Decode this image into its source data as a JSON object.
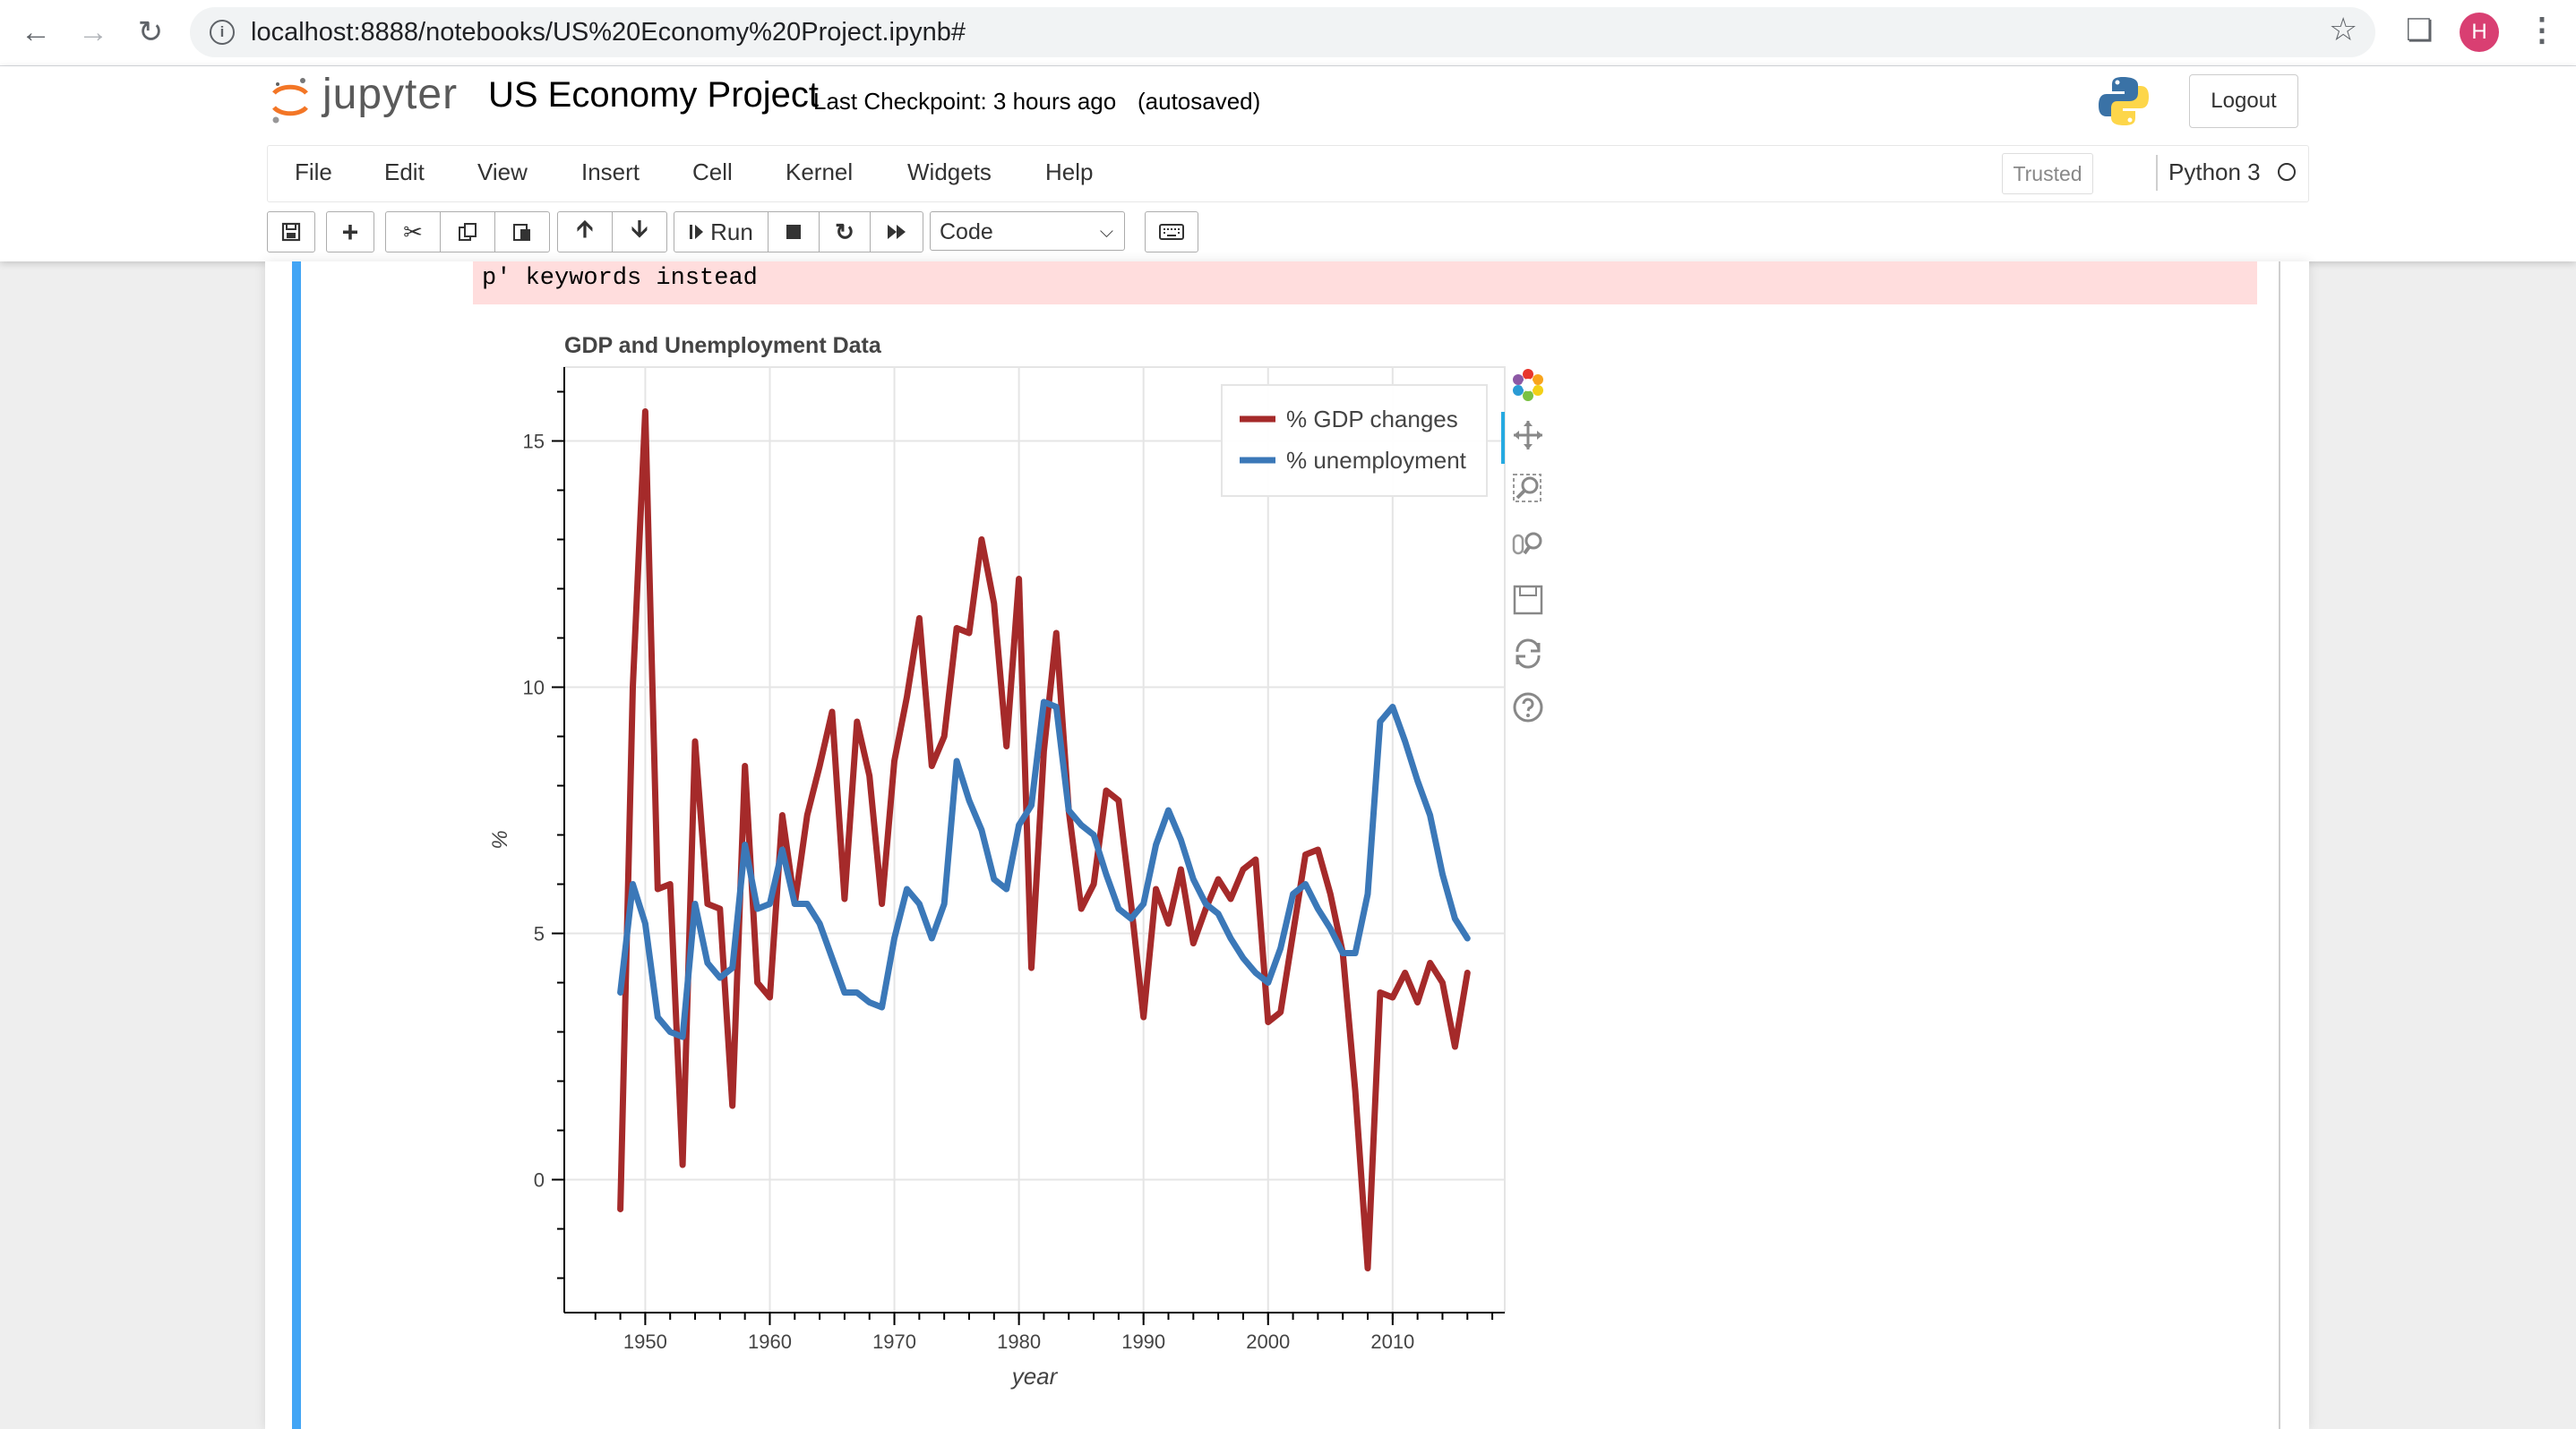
{
  "browser": {
    "url": "localhost:8888/notebooks/US%20Economy%20Project.ipynb#",
    "profile_initial": "H"
  },
  "header": {
    "logo_text": "jupyter",
    "notebook_name": "US Economy Project",
    "checkpoint": "Last Checkpoint: 3 hours ago",
    "autosave_status": "(autosaved)",
    "logout_label": "Logout"
  },
  "menu": {
    "items": [
      "File",
      "Edit",
      "View",
      "Insert",
      "Cell",
      "Kernel",
      "Widgets",
      "Help"
    ],
    "trusted_label": "Trusted",
    "kernel_name": "Python 3"
  },
  "toolbar": {
    "run_label": "Run",
    "cell_type": "Code"
  },
  "output": {
    "stderr_text": "p' keywords instead"
  },
  "colors": {
    "gdp": "#a52a2a",
    "unemployment": "#3b78b8",
    "cell_selected_bar": "#42a5f5",
    "stderr_bg": "#ffdddd"
  },
  "chart_data": {
    "type": "line",
    "title": "GDP and Unemployment Data",
    "xlabel": "year",
    "ylabel": "%",
    "xlim": [
      1943.5,
      2019
    ],
    "ylim": [
      -2.7,
      16.5
    ],
    "x_ticks": [
      1950,
      1960,
      1970,
      1980,
      1990,
      2000,
      2010
    ],
    "y_ticks": [
      0,
      5,
      10,
      15
    ],
    "grid": true,
    "legend_position": "top-right",
    "x": [
      1948,
      1949,
      1950,
      1951,
      1952,
      1953,
      1954,
      1955,
      1956,
      1957,
      1958,
      1959,
      1960,
      1961,
      1962,
      1963,
      1964,
      1965,
      1966,
      1967,
      1968,
      1969,
      1970,
      1971,
      1972,
      1973,
      1974,
      1975,
      1976,
      1977,
      1978,
      1979,
      1980,
      1981,
      1982,
      1983,
      1984,
      1985,
      1986,
      1987,
      1988,
      1989,
      1990,
      1991,
      1992,
      1993,
      1994,
      1995,
      1996,
      1997,
      1998,
      1999,
      2000,
      2001,
      2002,
      2003,
      2004,
      2005,
      2006,
      2007,
      2008,
      2009,
      2010,
      2011,
      2012,
      2013,
      2014,
      2015,
      2016
    ],
    "series": [
      {
        "name": "% GDP changes",
        "color": "#a52a2a",
        "values": [
          -0.6,
          10.0,
          15.6,
          5.9,
          6.0,
          0.3,
          8.9,
          5.6,
          5.5,
          1.5,
          8.4,
          4.0,
          3.7,
          7.4,
          5.6,
          7.4,
          8.4,
          9.5,
          5.7,
          9.3,
          8.2,
          5.6,
          8.5,
          9.8,
          11.4,
          8.4,
          9.0,
          11.2,
          11.1,
          13.0,
          11.7,
          8.8,
          12.2,
          4.3,
          8.7,
          11.1,
          7.5,
          5.5,
          6.0,
          7.9,
          7.7,
          5.6,
          3.3,
          5.9,
          5.2,
          6.3,
          4.8,
          5.5,
          6.1,
          5.7,
          6.3,
          6.5,
          3.2,
          3.4,
          5.0,
          6.6,
          6.7,
          5.8,
          4.6,
          1.8,
          -1.8,
          3.8,
          3.7,
          4.2,
          3.6,
          4.4,
          4.0,
          2.7,
          4.2
        ]
      },
      {
        "name": "% unemployment",
        "color": "#3b78b8",
        "values": [
          3.8,
          6.0,
          5.2,
          3.3,
          3.0,
          2.9,
          5.6,
          4.4,
          4.1,
          4.3,
          6.8,
          5.5,
          5.6,
          6.7,
          5.6,
          5.6,
          5.2,
          4.5,
          3.8,
          3.8,
          3.6,
          3.5,
          4.9,
          5.9,
          5.6,
          4.9,
          5.6,
          8.5,
          7.7,
          7.1,
          6.1,
          5.9,
          7.2,
          7.6,
          9.7,
          9.6,
          7.5,
          7.2,
          7.0,
          6.2,
          5.5,
          5.3,
          5.6,
          6.8,
          7.5,
          6.9,
          6.1,
          5.6,
          5.4,
          4.9,
          4.5,
          4.2,
          4.0,
          4.7,
          5.8,
          6.0,
          5.5,
          5.1,
          4.6,
          4.6,
          5.8,
          9.3,
          9.6,
          8.9,
          8.1,
          7.4,
          6.2,
          5.3,
          4.9
        ]
      }
    ]
  }
}
